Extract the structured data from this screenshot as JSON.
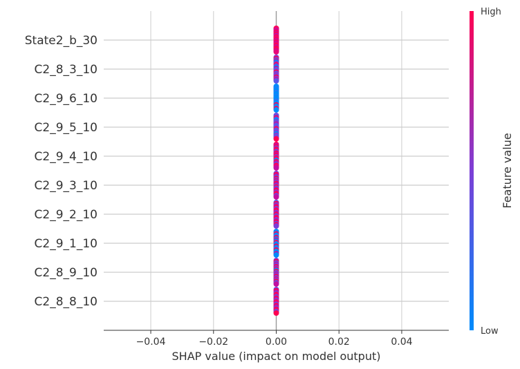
{
  "chart_data": {
    "type": "scatter",
    "subtype": "shap-beeswarm",
    "features": [
      "State2_b_30",
      "C2_8_3_10",
      "C2_9_6_10",
      "C2_9_5_10",
      "C2_9_4_10",
      "C2_9_3_10",
      "C2_9_2_10",
      "C2_9_1_10",
      "C2_8_9_10",
      "C2_8_8_10"
    ],
    "xlabel": "SHAP value (impact on model output)",
    "xlim": [
      -0.055,
      0.055
    ],
    "xticks": [
      -0.04,
      -0.02,
      0.0,
      0.02,
      0.04
    ],
    "xtick_labels": [
      "−0.04",
      "−0.02",
      "0.00",
      "0.02",
      "0.04"
    ],
    "shap_values_all": 0.0,
    "zero_line": true,
    "grid": true,
    "colorbar": {
      "title": "Feature value",
      "high_label": "High",
      "low_label": "Low",
      "low_color": "#008bfb",
      "mid_color": "#7c3fd6",
      "high_color": "#ff0052"
    },
    "point_colors": {
      "State2_b_30": [
        "#ff0052",
        "#e8067a",
        "#c210a0",
        "#ff0052",
        "#d20a8c",
        "#ff0052",
        "#b514b0",
        "#ff0052",
        "#e8067a",
        "#ff0052",
        "#c210a0",
        "#ff0052",
        "#d20a8c",
        "#e8067a",
        "#ff0052",
        "#c210a0",
        "#ff0052",
        "#ff0052",
        "#d20a8c",
        "#e8067a"
      ],
      "C2_8_3_10": [
        "#7c3fd6",
        "#ff0052",
        "#5a55e6",
        "#c210a0",
        "#008bfb",
        "#7c3fd6",
        "#ff0052",
        "#6a4ae0",
        "#008bfb",
        "#c210a0",
        "#4a5ff0",
        "#7c3fd6",
        "#ff0052",
        "#5a55e6",
        "#9a2cc6",
        "#6a4ae0",
        "#ff0052",
        "#7c3fd6",
        "#c210a0",
        "#5a55e6"
      ],
      "C2_9_6_10": [
        "#008bfb",
        "#008bfb",
        "#1a80f8",
        "#008bfb",
        "#008bfb",
        "#2a78f5",
        "#008bfb",
        "#008bfb",
        "#1a80f8",
        "#008bfb",
        "#008bfb",
        "#008bfb",
        "#3a6ff2",
        "#008bfb",
        "#008bfb",
        "#ff0052",
        "#008bfb",
        "#1a80f8",
        "#ff0052",
        "#008bfb"
      ],
      "C2_9_5_10": [
        "#7c3fd6",
        "#5a55e6",
        "#ff0052",
        "#6a4ae0",
        "#008bfb",
        "#7c3fd6",
        "#5a55e6",
        "#c210a0",
        "#6a4ae0",
        "#4a5ff0",
        "#7c3fd6",
        "#ff0052",
        "#5a55e6",
        "#6a4ae0",
        "#7c3fd6",
        "#008bfb",
        "#9a2cc6",
        "#5a55e6",
        "#7c3fd6",
        "#ff0052"
      ],
      "C2_9_4_10": [
        "#ff0052",
        "#c210a0",
        "#ff0052",
        "#7c3fd6",
        "#ff0052",
        "#e8067a",
        "#5a55e6",
        "#ff0052",
        "#c210a0",
        "#ff0052",
        "#7c3fd6",
        "#ff0052",
        "#e8067a",
        "#008bfb",
        "#ff0052",
        "#c210a0",
        "#6a4ae0",
        "#ff0052",
        "#e8067a",
        "#c210a0"
      ],
      "C2_9_3_10": [
        "#7c3fd6",
        "#ff0052",
        "#c210a0",
        "#5a55e6",
        "#ff0052",
        "#7c3fd6",
        "#e8067a",
        "#6a4ae0",
        "#ff0052",
        "#c210a0",
        "#7c3fd6",
        "#ff0052",
        "#5a55e6",
        "#c210a0",
        "#ff0052",
        "#7c3fd6",
        "#e8067a",
        "#ff0052",
        "#6a4ae0",
        "#c210a0"
      ],
      "C2_9_2_10": [
        "#5a55e6",
        "#ff0052",
        "#7c3fd6",
        "#c210a0",
        "#ff0052",
        "#6a4ae0",
        "#e8067a",
        "#ff0052",
        "#7c3fd6",
        "#c210a0",
        "#ff0052",
        "#5a55e6",
        "#e8067a",
        "#ff0052",
        "#7c3fd6",
        "#c210a0",
        "#ff0052",
        "#6a4ae0",
        "#ff0052",
        "#7c3fd6"
      ],
      "C2_9_1_10": [
        "#008bfb",
        "#1a80f8",
        "#ff0052",
        "#008bfb",
        "#2a78f5",
        "#ff0052",
        "#008bfb",
        "#c210a0",
        "#008bfb",
        "#ff0052",
        "#1a80f8",
        "#008bfb",
        "#ff0052",
        "#008bfb",
        "#2a78f5",
        "#ff0052",
        "#008bfb",
        "#008bfb",
        "#c210a0",
        "#008bfb"
      ],
      "C2_8_9_10": [
        "#7c3fd6",
        "#ff0052",
        "#5a55e6",
        "#c210a0",
        "#6a4ae0",
        "#ff0052",
        "#7c3fd6",
        "#e8067a",
        "#008bfb",
        "#ff0052",
        "#5a55e6",
        "#c210a0",
        "#7c3fd6",
        "#ff0052",
        "#6a4ae0",
        "#e8067a",
        "#7c3fd6",
        "#ff0052",
        "#5a55e6",
        "#c210a0"
      ],
      "C2_8_8_10": [
        "#6a4ae0",
        "#ff0052",
        "#c210a0",
        "#7c3fd6",
        "#ff0052",
        "#e8067a",
        "#5a55e6",
        "#ff0052",
        "#c210a0",
        "#7c3fd6",
        "#ff0052",
        "#e8067a",
        "#6a4ae0",
        "#ff0052",
        "#c210a0",
        "#7c3fd6",
        "#ff0052",
        "#e8067a",
        "#5a55e6",
        "#ff0052"
      ]
    }
  }
}
